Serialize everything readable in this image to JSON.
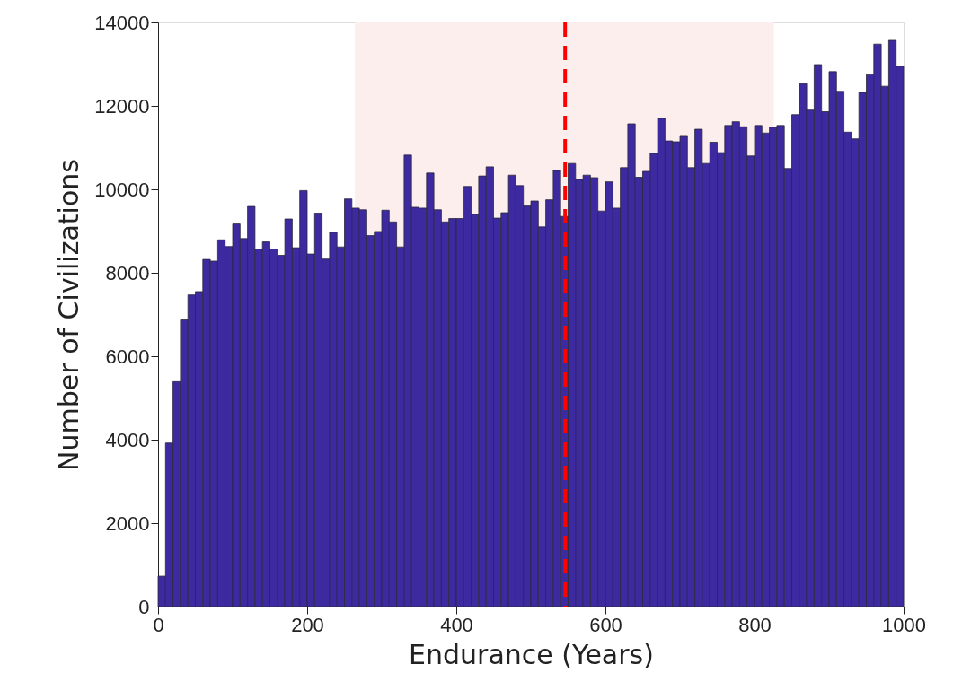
{
  "chart_data": {
    "type": "histogram",
    "xlabel": "Endurance (Years)",
    "ylabel": "Number of Civilizations",
    "bins": [
      0,
      10,
      20,
      30,
      40,
      50,
      60,
      70,
      80,
      90,
      100,
      110,
      120,
      130,
      140,
      150,
      160,
      170,
      180,
      190,
      200,
      210,
      220,
      230,
      240,
      250,
      260,
      270,
      280,
      290,
      300,
      310,
      320,
      330,
      340,
      350,
      360,
      370,
      380,
      390,
      400,
      410,
      420,
      430,
      440,
      450,
      460,
      470,
      480,
      490,
      500,
      510,
      520,
      530,
      540,
      550,
      560,
      570,
      580,
      590,
      600,
      610,
      620,
      630,
      640,
      650,
      660,
      670,
      680,
      690,
      700,
      710,
      720,
      730,
      740,
      750,
      760,
      770,
      780,
      790,
      800,
      810,
      820,
      830,
      840,
      850,
      860,
      870,
      880,
      890,
      900,
      910,
      920,
      930,
      940,
      950,
      960,
      970,
      980,
      990,
      1000
    ],
    "values": [
      730,
      3920,
      5390,
      6870,
      7470,
      7550,
      8320,
      8280,
      8790,
      8630,
      9170,
      8820,
      9590,
      8570,
      8740,
      8570,
      8420,
      9290,
      8600,
      9970,
      8450,
      9430,
      8330,
      8970,
      8620,
      9770,
      9550,
      9510,
      8890,
      8990,
      9500,
      9220,
      8620,
      10820,
      9570,
      9550,
      10390,
      9510,
      9220,
      9300,
      9300,
      10070,
      9400,
      10320,
      10540,
      9310,
      9440,
      10340,
      10090,
      9600,
      9720,
      9100,
      9750,
      10450,
      9350,
      10620,
      10240,
      10340,
      10280,
      9480,
      10180,
      9550,
      10520,
      11570,
      10290,
      10430,
      10860,
      11700,
      11160,
      11140,
      11270,
      10520,
      11440,
      10620,
      11130,
      10880,
      11530,
      11620,
      11500,
      10800,
      11530,
      11350,
      11490,
      11530,
      10500,
      11790,
      12530,
      11900,
      12990,
      11860,
      12820,
      12350,
      11370,
      11210,
      12320,
      12750,
      13480,
      12470,
      13570,
      12950
    ],
    "color": "#3d2aa0",
    "xlim": [
      0,
      1000
    ],
    "xticks": [
      0,
      200,
      400,
      600,
      800,
      1000
    ],
    "ylim": [
      0,
      14000
    ],
    "yticks": [
      0,
      2000,
      4000,
      6000,
      8000,
      10000,
      12000,
      14000
    ],
    "grid": false,
    "bands": [
      {
        "axis": "x",
        "from": 264,
        "to": 826,
        "color": "#fdeeee"
      }
    ],
    "ref_lines": [
      {
        "axis": "x",
        "value": 546,
        "color": "#ff0000",
        "line_style": "dashed"
      }
    ]
  }
}
